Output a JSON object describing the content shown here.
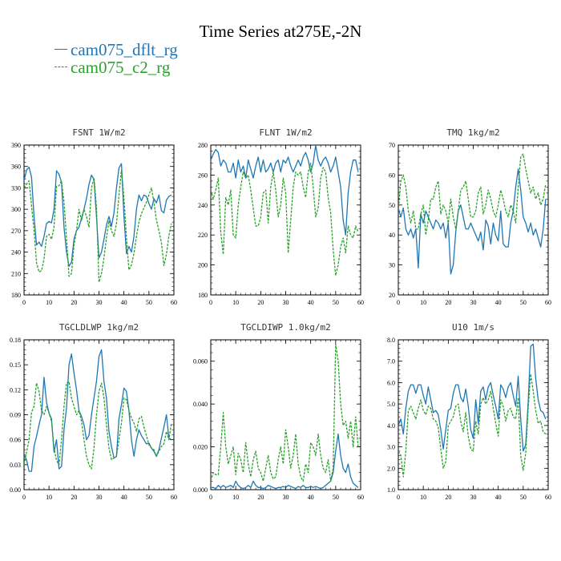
{
  "title": "Time Series at275E,-2N",
  "legend": [
    {
      "label": "cam075_dflt_rg",
      "color": "#1f77b4",
      "dashed": false
    },
    {
      "label": "cam075_c2_rg",
      "color": "#2ca02c",
      "dashed": true
    }
  ],
  "chart_data": [
    {
      "type": "line",
      "title": "FSNT   1W/m2",
      "xlim": [
        0,
        60
      ],
      "ylim": [
        180,
        390
      ],
      "xticks": [
        "0",
        "10",
        "20",
        "30",
        "40",
        "50",
        "60"
      ],
      "yticks": [
        "180",
        "210",
        "240",
        "270",
        "300",
        "330",
        "360",
        "390"
      ],
      "x_start": 0,
      "series": [
        {
          "name": "cam075_dflt_rg",
          "values": [
            340,
            355,
            359,
            345,
            290,
            250,
            254,
            248,
            262,
            280,
            283,
            281,
            300,
            354,
            349,
            338,
            275,
            240,
            220,
            226,
            258,
            270,
            275,
            287,
            300,
            315,
            335,
            348,
            342,
            290,
            232,
            240,
            258,
            278,
            290,
            276,
            295,
            330,
            358,
            364,
            290,
            238,
            248,
            240,
            262,
            300,
            320,
            312,
            320,
            318,
            308,
            300,
            315,
            309,
            320,
            298,
            295,
            313,
            318,
            320
          ]
        },
        {
          "name": "cam075_c2_rg",
          "values": [
            330,
            335,
            340,
            305,
            270,
            225,
            212,
            214,
            230,
            262,
            265,
            258,
            275,
            332,
            333,
            340,
            310,
            260,
            206,
            210,
            250,
            270,
            300,
            284,
            300,
            290,
            275,
            330,
            344,
            303,
            198,
            210,
            232,
            260,
            284,
            270,
            262,
            280,
            320,
            355,
            316,
            260,
            215,
            222,
            238,
            262,
            282,
            294,
            302,
            310,
            320,
            330,
            310,
            285,
            270,
            253,
            221,
            237,
            263,
            280
          ]
        }
      ]
    },
    {
      "type": "line",
      "title": "FLNT   1W/m2",
      "xlim": [
        0,
        60
      ],
      "ylim": [
        180,
        280
      ],
      "xticks": [
        "0",
        "10",
        "20",
        "30",
        "40",
        "50",
        "60"
      ],
      "yticks": [
        "180",
        "200",
        "220",
        "240",
        "260",
        "280"
      ],
      "x_start": 0,
      "series": [
        {
          "name": "cam075_dflt_rg",
          "values": [
            270,
            274,
            277,
            275,
            266,
            270,
            268,
            262,
            262,
            268,
            258,
            270,
            262,
            266,
            258,
            270,
            264,
            258,
            266,
            272,
            262,
            270,
            262,
            264,
            268,
            262,
            268,
            270,
            262,
            270,
            268,
            272,
            266,
            262,
            266,
            270,
            266,
            272,
            275,
            270,
            262,
            268,
            280,
            270,
            266,
            270,
            272,
            268,
            262,
            266,
            272,
            262,
            252,
            230,
            220,
            248,
            262,
            270,
            270,
            262
          ]
        },
        {
          "name": "cam075_c2_rg",
          "values": [
            250,
            244,
            250,
            258,
            222,
            207,
            245,
            240,
            250,
            220,
            218,
            240,
            252,
            262,
            258,
            260,
            250,
            238,
            226,
            226,
            232,
            248,
            250,
            228,
            252,
            262,
            250,
            232,
            240,
            258,
            248,
            208,
            230,
            252,
            262,
            260,
            262,
            252,
            245,
            262,
            268,
            252,
            232,
            238,
            258,
            265,
            262,
            245,
            235,
            210,
            193,
            200,
            212,
            218,
            208,
            226,
            220,
            218,
            226,
            222
          ]
        }
      ]
    },
    {
      "type": "line",
      "title": "TMQ   1kg/m2",
      "xlim": [
        0,
        60
      ],
      "ylim": [
        20,
        70
      ],
      "xticks": [
        "0",
        "10",
        "20",
        "30",
        "40",
        "50",
        "60"
      ],
      "yticks": [
        "20",
        "30",
        "40",
        "50",
        "60",
        "70"
      ],
      "x_start": 0,
      "series": [
        {
          "name": "cam075_dflt_rg",
          "values": [
            49,
            46,
            49,
            42,
            40,
            42,
            39,
            42,
            29,
            47,
            44,
            48,
            46,
            44,
            42,
            45,
            44,
            42,
            44,
            39,
            44,
            27,
            30,
            41,
            48,
            50,
            46,
            42,
            42,
            44,
            42,
            40,
            38,
            41,
            35,
            45,
            43,
            37,
            44,
            40,
            38,
            48,
            37,
            36,
            36,
            44,
            48,
            56,
            62,
            55,
            46,
            44,
            41,
            44,
            40,
            42,
            39,
            36,
            42,
            52
          ]
        },
        {
          "name": "cam075_c2_rg",
          "values": [
            48,
            58,
            60,
            56,
            48,
            44,
            48,
            42,
            42,
            47,
            50,
            40,
            45,
            52,
            52,
            56,
            58,
            47,
            50,
            48,
            44,
            52,
            46,
            42,
            48,
            55,
            56,
            58,
            52,
            46,
            46,
            48,
            54,
            56,
            47,
            50,
            55,
            52,
            48,
            46,
            50,
            55,
            52,
            48,
            46,
            50,
            48,
            44,
            56,
            66,
            67,
            62,
            58,
            54,
            56,
            52,
            54,
            50,
            52,
            57
          ]
        }
      ]
    },
    {
      "type": "line",
      "title": "TGCLDLWP   1kg/m2",
      "xlim": [
        0,
        60
      ],
      "ylim": [
        0,
        0.18
      ],
      "xticks": [
        "0",
        "10",
        "20",
        "30",
        "40",
        "50",
        "60"
      ],
      "yticks": [
        "0.00",
        "0.03",
        "0.06",
        "0.09",
        "0.12",
        "0.15",
        "0.18"
      ],
      "x_start": 0,
      "series": [
        {
          "name": "cam075_dflt_rg",
          "values": [
            0.042,
            0.036,
            0.022,
            0.022,
            0.052,
            0.064,
            0.078,
            0.09,
            0.135,
            0.105,
            0.092,
            0.085,
            0.045,
            0.06,
            0.025,
            0.028,
            0.072,
            0.098,
            0.15,
            0.163,
            0.14,
            0.12,
            0.095,
            0.088,
            0.078,
            0.06,
            0.065,
            0.09,
            0.11,
            0.13,
            0.16,
            0.168,
            0.13,
            0.11,
            0.07,
            0.052,
            0.038,
            0.04,
            0.085,
            0.102,
            0.122,
            0.118,
            0.095,
            0.06,
            0.04,
            0.06,
            0.072,
            0.065,
            0.06,
            0.055,
            0.056,
            0.05,
            0.046,
            0.04,
            0.048,
            0.062,
            0.075,
            0.09,
            0.062,
            0.06
          ]
        },
        {
          "name": "cam075_c2_rg",
          "values": [
            0.03,
            0.045,
            0.06,
            0.093,
            0.1,
            0.128,
            0.118,
            0.095,
            0.09,
            0.1,
            0.092,
            0.082,
            0.05,
            0.035,
            0.03,
            0.06,
            0.1,
            0.128,
            0.13,
            0.11,
            0.1,
            0.09,
            0.095,
            0.082,
            0.06,
            0.04,
            0.03,
            0.025,
            0.05,
            0.09,
            0.118,
            0.128,
            0.11,
            0.078,
            0.05,
            0.036,
            0.038,
            0.04,
            0.06,
            0.08,
            0.11,
            0.108,
            0.095,
            0.086,
            0.08,
            0.07,
            0.085,
            0.088,
            0.075,
            0.065,
            0.054,
            0.05,
            0.048,
            0.04,
            0.046,
            0.052,
            0.055,
            0.07,
            0.06,
            0.08
          ]
        }
      ]
    },
    {
      "type": "line",
      "title": "TGCLDIWP   1.0kg/m2",
      "xlim": [
        0,
        60
      ],
      "ylim": [
        0,
        0.07
      ],
      "xticks": [
        "0",
        "10",
        "20",
        "30",
        "40",
        "50",
        "60"
      ],
      "yticks": [
        "0.000",
        "0.020",
        "0.040",
        "0.060"
      ],
      "x_start": 0,
      "series": [
        {
          "name": "cam075_dflt_rg",
          "values": [
            0.001,
            0.001,
            0.0005,
            0.002,
            0.001,
            0.002,
            0.001,
            0.0015,
            0.002,
            0.001,
            0.004,
            0.002,
            0.001,
            0.0005,
            0.001,
            0.002,
            0.001,
            0.004,
            0.002,
            0.001,
            0.001,
            0.0005,
            0.001,
            0.002,
            0.0015,
            0.001,
            0.0005,
            0.001,
            0.001,
            0.0015,
            0.001,
            0.002,
            0.0015,
            0.001,
            0.0005,
            0.0015,
            0.001,
            0.002,
            0.001,
            0.001,
            0.0015,
            0.001,
            0.0015,
            0.001,
            0.0005,
            0.001,
            0.002,
            0.003,
            0.004,
            0.008,
            0.018,
            0.026,
            0.016,
            0.01,
            0.008,
            0.012,
            0.006,
            0.003,
            0.002,
            0.001
          ]
        },
        {
          "name": "cam075_c2_rg",
          "values": [
            0.004,
            0.008,
            0.007,
            0.007,
            0.02,
            0.036,
            0.02,
            0.012,
            0.016,
            0.02,
            0.007,
            0.017,
            0.014,
            0.008,
            0.022,
            0.012,
            0.006,
            0.014,
            0.018,
            0.01,
            0.008,
            0.004,
            0.01,
            0.016,
            0.008,
            0.005,
            0.006,
            0.014,
            0.02,
            0.012,
            0.028,
            0.02,
            0.01,
            0.016,
            0.026,
            0.012,
            0.006,
            0.004,
            0.012,
            0.008,
            0.022,
            0.02,
            0.016,
            0.026,
            0.016,
            0.01,
            0.008,
            0.014,
            0.004,
            0.01,
            0.068,
            0.06,
            0.04,
            0.03,
            0.032,
            0.024,
            0.032,
            0.02,
            0.034,
            0.02
          ]
        }
      ]
    },
    {
      "type": "line",
      "title": "U10   1m/s",
      "xlim": [
        0,
        60
      ],
      "ylim": [
        1.0,
        8.0
      ],
      "xticks": [
        "0",
        "10",
        "20",
        "30",
        "40",
        "50",
        "60"
      ],
      "yticks": [
        "1.0",
        "2.0",
        "3.0",
        "4.0",
        "5.0",
        "6.0",
        "7.0",
        "8.0"
      ],
      "x_start": 0,
      "series": [
        {
          "name": "cam075_dflt_rg",
          "values": [
            4.0,
            4.3,
            3.6,
            4.8,
            5.6,
            5.9,
            5.9,
            5.5,
            5.9,
            5.9,
            5.4,
            5.0,
            5.8,
            5.2,
            4.6,
            4.7,
            4.5,
            3.8,
            2.9,
            3.8,
            4.7,
            4.8,
            5.5,
            5.9,
            5.9,
            5.3,
            5.1,
            5.7,
            4.9,
            3.8,
            3.4,
            5.2,
            4.1,
            5.6,
            5.8,
            5.2,
            5.8,
            6.0,
            5.4,
            4.9,
            4.3,
            5.9,
            5.7,
            5.3,
            5.8,
            6.0,
            5.4,
            4.9,
            6.3,
            4.3,
            2.8,
            3.1,
            5.1,
            7.7,
            7.8,
            6.2,
            5.2,
            4.7,
            4.6,
            4.3
          ]
        },
        {
          "name": "cam075_c2_rg",
          "values": [
            2.8,
            2.6,
            1.6,
            2.8,
            4.7,
            4.9,
            4.6,
            4.3,
            4.8,
            5.2,
            4.7,
            4.5,
            4.9,
            4.8,
            4.3,
            4.2,
            3.9,
            2.9,
            2.0,
            2.3,
            4.0,
            4.2,
            4.4,
            4.9,
            5.0,
            4.2,
            3.7,
            4.6,
            3.5,
            2.9,
            2.8,
            4.2,
            3.6,
            5.0,
            5.3,
            5.0,
            5.2,
            5.6,
            4.8,
            4.1,
            3.5,
            5.2,
            4.9,
            4.2,
            4.7,
            4.8,
            4.4,
            4.3,
            5.3,
            2.6,
            1.9,
            2.7,
            4.8,
            6.4,
            5.6,
            4.7,
            4.1,
            4.2,
            3.7,
            3.6
          ]
        }
      ]
    }
  ]
}
